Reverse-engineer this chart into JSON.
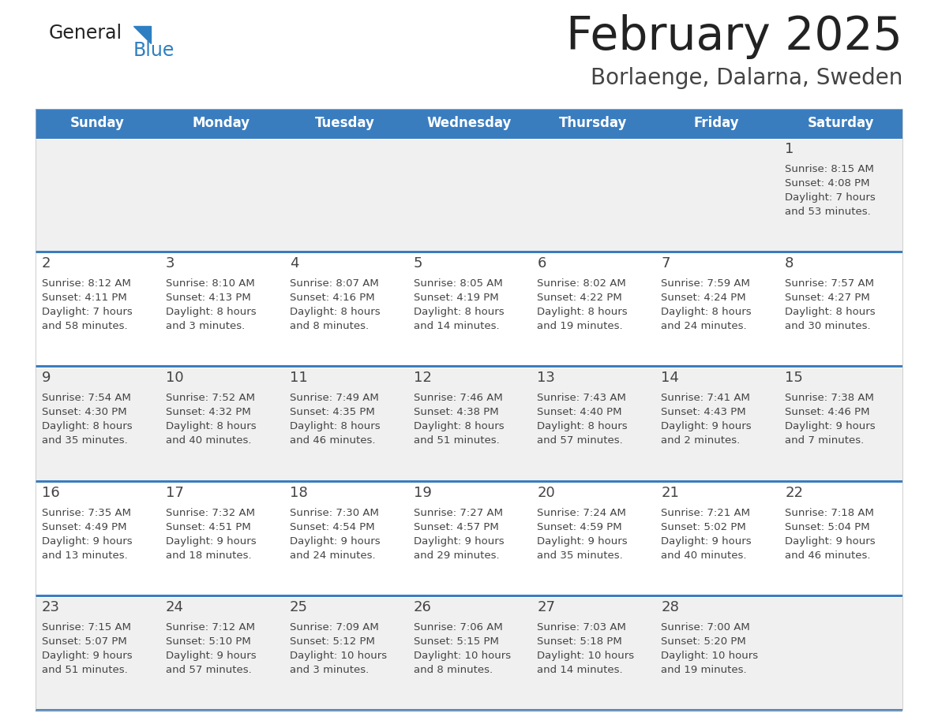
{
  "title": "February 2025",
  "subtitle": "Borlaenge, Dalarna, Sweden",
  "days_of_week": [
    "Sunday",
    "Monday",
    "Tuesday",
    "Wednesday",
    "Thursday",
    "Friday",
    "Saturday"
  ],
  "header_bg": "#3a7dbf",
  "header_text": "#ffffff",
  "row_bg_odd": "#f0f0f0",
  "row_bg_even": "#ffffff",
  "separator_color": "#3a7dbf",
  "cell_text_color": "#444444",
  "title_color": "#222222",
  "subtitle_color": "#444444",
  "logo_black": "#222222",
  "logo_blue": "#2e7fc1",
  "triangle_color": "#2e7fc1",
  "calendar_data": [
    {
      "day": 1,
      "col": 6,
      "row": 0,
      "sunrise": "8:15 AM",
      "sunset": "4:08 PM",
      "daylight": "7 hours",
      "daylight2": "and 53 minutes."
    },
    {
      "day": 2,
      "col": 0,
      "row": 1,
      "sunrise": "8:12 AM",
      "sunset": "4:11 PM",
      "daylight": "7 hours",
      "daylight2": "and 58 minutes."
    },
    {
      "day": 3,
      "col": 1,
      "row": 1,
      "sunrise": "8:10 AM",
      "sunset": "4:13 PM",
      "daylight": "8 hours",
      "daylight2": "and 3 minutes."
    },
    {
      "day": 4,
      "col": 2,
      "row": 1,
      "sunrise": "8:07 AM",
      "sunset": "4:16 PM",
      "daylight": "8 hours",
      "daylight2": "and 8 minutes."
    },
    {
      "day": 5,
      "col": 3,
      "row": 1,
      "sunrise": "8:05 AM",
      "sunset": "4:19 PM",
      "daylight": "8 hours",
      "daylight2": "and 14 minutes."
    },
    {
      "day": 6,
      "col": 4,
      "row": 1,
      "sunrise": "8:02 AM",
      "sunset": "4:22 PM",
      "daylight": "8 hours",
      "daylight2": "and 19 minutes."
    },
    {
      "day": 7,
      "col": 5,
      "row": 1,
      "sunrise": "7:59 AM",
      "sunset": "4:24 PM",
      "daylight": "8 hours",
      "daylight2": "and 24 minutes."
    },
    {
      "day": 8,
      "col": 6,
      "row": 1,
      "sunrise": "7:57 AM",
      "sunset": "4:27 PM",
      "daylight": "8 hours",
      "daylight2": "and 30 minutes."
    },
    {
      "day": 9,
      "col": 0,
      "row": 2,
      "sunrise": "7:54 AM",
      "sunset": "4:30 PM",
      "daylight": "8 hours",
      "daylight2": "and 35 minutes."
    },
    {
      "day": 10,
      "col": 1,
      "row": 2,
      "sunrise": "7:52 AM",
      "sunset": "4:32 PM",
      "daylight": "8 hours",
      "daylight2": "and 40 minutes."
    },
    {
      "day": 11,
      "col": 2,
      "row": 2,
      "sunrise": "7:49 AM",
      "sunset": "4:35 PM",
      "daylight": "8 hours",
      "daylight2": "and 46 minutes."
    },
    {
      "day": 12,
      "col": 3,
      "row": 2,
      "sunrise": "7:46 AM",
      "sunset": "4:38 PM",
      "daylight": "8 hours",
      "daylight2": "and 51 minutes."
    },
    {
      "day": 13,
      "col": 4,
      "row": 2,
      "sunrise": "7:43 AM",
      "sunset": "4:40 PM",
      "daylight": "8 hours",
      "daylight2": "and 57 minutes."
    },
    {
      "day": 14,
      "col": 5,
      "row": 2,
      "sunrise": "7:41 AM",
      "sunset": "4:43 PM",
      "daylight": "9 hours",
      "daylight2": "and 2 minutes."
    },
    {
      "day": 15,
      "col": 6,
      "row": 2,
      "sunrise": "7:38 AM",
      "sunset": "4:46 PM",
      "daylight": "9 hours",
      "daylight2": "and 7 minutes."
    },
    {
      "day": 16,
      "col": 0,
      "row": 3,
      "sunrise": "7:35 AM",
      "sunset": "4:49 PM",
      "daylight": "9 hours",
      "daylight2": "and 13 minutes."
    },
    {
      "day": 17,
      "col": 1,
      "row": 3,
      "sunrise": "7:32 AM",
      "sunset": "4:51 PM",
      "daylight": "9 hours",
      "daylight2": "and 18 minutes."
    },
    {
      "day": 18,
      "col": 2,
      "row": 3,
      "sunrise": "7:30 AM",
      "sunset": "4:54 PM",
      "daylight": "9 hours",
      "daylight2": "and 24 minutes."
    },
    {
      "day": 19,
      "col": 3,
      "row": 3,
      "sunrise": "7:27 AM",
      "sunset": "4:57 PM",
      "daylight": "9 hours",
      "daylight2": "and 29 minutes."
    },
    {
      "day": 20,
      "col": 4,
      "row": 3,
      "sunrise": "7:24 AM",
      "sunset": "4:59 PM",
      "daylight": "9 hours",
      "daylight2": "and 35 minutes."
    },
    {
      "day": 21,
      "col": 5,
      "row": 3,
      "sunrise": "7:21 AM",
      "sunset": "5:02 PM",
      "daylight": "9 hours",
      "daylight2": "and 40 minutes."
    },
    {
      "day": 22,
      "col": 6,
      "row": 3,
      "sunrise": "7:18 AM",
      "sunset": "5:04 PM",
      "daylight": "9 hours",
      "daylight2": "and 46 minutes."
    },
    {
      "day": 23,
      "col": 0,
      "row": 4,
      "sunrise": "7:15 AM",
      "sunset": "5:07 PM",
      "daylight": "9 hours",
      "daylight2": "and 51 minutes."
    },
    {
      "day": 24,
      "col": 1,
      "row": 4,
      "sunrise": "7:12 AM",
      "sunset": "5:10 PM",
      "daylight": "9 hours",
      "daylight2": "and 57 minutes."
    },
    {
      "day": 25,
      "col": 2,
      "row": 4,
      "sunrise": "7:09 AM",
      "sunset": "5:12 PM",
      "daylight": "10 hours",
      "daylight2": "and 3 minutes."
    },
    {
      "day": 26,
      "col": 3,
      "row": 4,
      "sunrise": "7:06 AM",
      "sunset": "5:15 PM",
      "daylight": "10 hours",
      "daylight2": "and 8 minutes."
    },
    {
      "day": 27,
      "col": 4,
      "row": 4,
      "sunrise": "7:03 AM",
      "sunset": "5:18 PM",
      "daylight": "10 hours",
      "daylight2": "and 14 minutes."
    },
    {
      "day": 28,
      "col": 5,
      "row": 4,
      "sunrise": "7:00 AM",
      "sunset": "5:20 PM",
      "daylight": "10 hours",
      "daylight2": "and 19 minutes."
    }
  ],
  "fig_width": 11.88,
  "fig_height": 9.18,
  "dpi": 100
}
